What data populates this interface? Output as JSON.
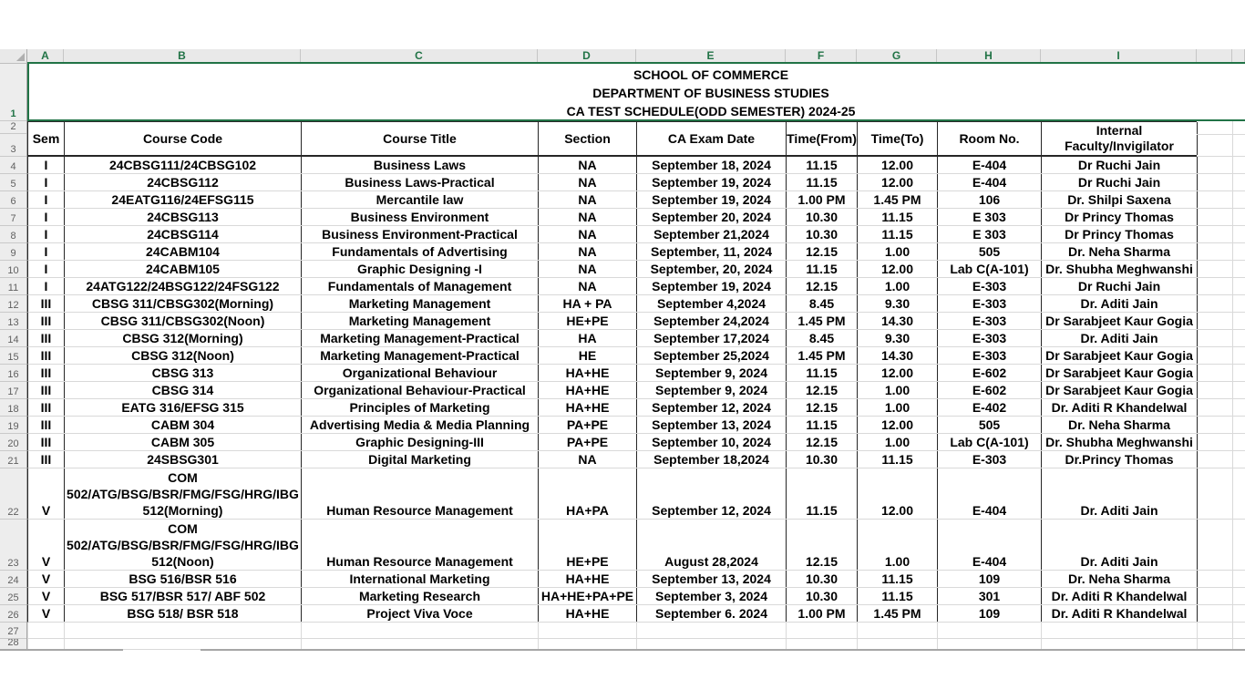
{
  "title": {
    "line1": "SCHOOL OF COMMERCE",
    "line2": "DEPARTMENT OF BUSINESS STUDIES",
    "line3": "CA TEST SCHEDULE(ODD SEMESTER) 2024-25"
  },
  "column_letters": [
    "A",
    "B",
    "C",
    "D",
    "E",
    "F",
    "G",
    "H",
    "I"
  ],
  "row_numbers": [
    "1",
    "2",
    "3",
    "4",
    "5",
    "6",
    "7",
    "8",
    "9",
    "10",
    "11",
    "12",
    "13",
    "14",
    "15",
    "16",
    "17",
    "18",
    "19",
    "20",
    "21",
    "22",
    "23",
    "24",
    "25",
    "26",
    "27",
    "28"
  ],
  "table": {
    "headers": [
      "Sem",
      "Course Code",
      "Course Title",
      "Section",
      "CA Exam Date",
      "Time(From)",
      "Time(To)",
      "Room No.",
      "Internal Faculty/Invigilator"
    ],
    "rows": [
      {
        "n": "4",
        "cells": [
          "I",
          "24CBSG111/24CBSG102",
          "Business Laws",
          "NA",
          "September 18, 2024",
          "11.15",
          "12.00",
          "E-404",
          "Dr Ruchi Jain"
        ]
      },
      {
        "n": "5",
        "cells": [
          "I",
          "24CBSG112",
          "Business Laws-Practical",
          "NA",
          "September 19, 2024",
          "11.15",
          "12.00",
          "E-404",
          "Dr Ruchi Jain"
        ]
      },
      {
        "n": "6",
        "cells": [
          "I",
          "24EATG116/24EFSG115",
          "Mercantile law",
          "NA",
          "September 19, 2024",
          "1.00 PM",
          "1.45 PM",
          "106",
          "Dr. Shilpi Saxena"
        ]
      },
      {
        "n": "7",
        "cells": [
          "I",
          "24CBSG113",
          "Business Environment",
          "NA",
          "September 20, 2024",
          "10.30",
          "11.15",
          "E 303",
          "Dr Princy Thomas"
        ]
      },
      {
        "n": "8",
        "cells": [
          "I",
          "24CBSG114",
          "Business Environment-Practical",
          "NA",
          "September 21,2024",
          "10.30",
          "11.15",
          "E 303",
          "Dr Princy Thomas"
        ]
      },
      {
        "n": "9",
        "cells": [
          "I",
          "24CABM104",
          "Fundamentals of Advertising",
          "NA",
          "September, 11, 2024",
          "12.15",
          "1.00",
          "505",
          "Dr. Neha Sharma"
        ]
      },
      {
        "n": "10",
        "cells": [
          "I",
          "24CABM105",
          "Graphic Designing -I",
          "NA",
          "September, 20, 2024",
          "11.15",
          "12.00",
          "Lab C(A-101)",
          "Dr. Shubha Meghwanshi"
        ]
      },
      {
        "n": "11",
        "cells": [
          "I",
          "24ATG122/24BSG122/24FSG122",
          "Fundamentals of Management",
          "NA",
          "September 19, 2024",
          "12.15",
          "1.00",
          "E-303",
          "Dr Ruchi Jain"
        ]
      },
      {
        "n": "12",
        "cells": [
          "III",
          "CBSG 311/CBSG302(Morning)",
          "Marketing Management",
          "HA + PA",
          "September 4,2024",
          "8.45",
          "9.30",
          "E-303",
          "Dr. Aditi Jain"
        ]
      },
      {
        "n": "13",
        "cells": [
          "III",
          "CBSG 311/CBSG302(Noon)",
          "Marketing Management",
          "HE+PE",
          "September 24,2024",
          "1.45 PM",
          "14.30",
          "E-303",
          "Dr Sarabjeet Kaur Gogia"
        ]
      },
      {
        "n": "14",
        "cells": [
          "III",
          "CBSG 312(Morning)",
          "Marketing Management-Practical",
          "HA",
          "September 17,2024",
          "8.45",
          "9.30",
          "E-303",
          "Dr. Aditi Jain"
        ]
      },
      {
        "n": "15",
        "cells": [
          "III",
          "CBSG 312(Noon)",
          "Marketing Management-Practical",
          "HE",
          "September 25,2024",
          "1.45 PM",
          "14.30",
          "E-303",
          "Dr Sarabjeet Kaur Gogia"
        ]
      },
      {
        "n": "16",
        "cells": [
          "III",
          "CBSG 313",
          "Organizational Behaviour",
          "HA+HE",
          "September 9, 2024",
          "11.15",
          "12.00",
          "E-602",
          "Dr Sarabjeet Kaur Gogia"
        ]
      },
      {
        "n": "17",
        "cells": [
          "III",
          "CBSG 314",
          "Organizational Behaviour-Practical",
          "HA+HE",
          "September 9, 2024",
          "12.15",
          "1.00",
          "E-602",
          "Dr Sarabjeet Kaur Gogia"
        ]
      },
      {
        "n": "18",
        "cells": [
          "III",
          "EATG 316/EFSG 315",
          "Principles of Marketing",
          "HA+HE",
          "September 12, 2024",
          "12.15",
          "1.00",
          "E-402",
          "Dr. Aditi R Khandelwal"
        ]
      },
      {
        "n": "19",
        "cells": [
          "III",
          "CABM 304",
          "Advertising Media & Media Planning",
          "PA+PE",
          "September 13, 2024",
          "11.15",
          "12.00",
          "505",
          "Dr. Neha Sharma"
        ]
      },
      {
        "n": "20",
        "cells": [
          "III",
          "CABM 305",
          "Graphic Designing-III",
          "PA+PE",
          "September 10, 2024",
          "12.15",
          "1.00",
          "Lab C(A-101)",
          "Dr. Shubha Meghwanshi"
        ]
      },
      {
        "n": "21",
        "cells": [
          "III",
          "24SBSG301",
          "Digital Marketing",
          "NA",
          "September 18,2024",
          "10.30",
          "11.15",
          "E-303",
          "Dr.Princy Thomas"
        ]
      },
      {
        "n": "22",
        "cells": [
          "V",
          "COM 502/ATG/BSG/BSR/FMG/FSG/HRG/IBG 512(Morning)",
          "Human Resource Management",
          "HA+PA",
          "September 12, 2024",
          "11.15",
          "12.00",
          "E-404",
          "Dr. Aditi Jain"
        ]
      },
      {
        "n": "23",
        "cells": [
          "V",
          "COM 502/ATG/BSG/BSR/FMG/FSG/HRG/IBG 512(Noon)",
          "Human Resource Management",
          "HE+PE",
          "August 28,2024",
          "12.15",
          "1.00",
          "E-404",
          "Dr. Aditi Jain"
        ]
      },
      {
        "n": "24",
        "cells": [
          "V",
          "BSG 516/BSR 516",
          "International Marketing",
          "HA+HE",
          "September 13, 2024",
          "10.30",
          "11.15",
          "109",
          "Dr. Neha Sharma"
        ]
      },
      {
        "n": "25",
        "cells": [
          "V",
          "BSG 517/BSR 517/ ABF 502",
          "Marketing Research",
          "HA+HE+PA+PE",
          "September 3, 2024",
          "10.30",
          "11.15",
          "301",
          "Dr. Aditi R Khandelwal"
        ]
      },
      {
        "n": "26",
        "cells": [
          "V",
          "BSG 518/ BSR 518",
          "Project Viva Voce",
          "HA+HE",
          "September 6. 2024",
          "1.00 PM",
          "1.45 PM",
          "109",
          "Dr. Aditi R Khandelwal"
        ]
      },
      {
        "n": "27",
        "cells": [
          "",
          "",
          "",
          "",
          "",
          "",
          "",
          "",
          ""
        ]
      },
      {
        "n": "28",
        "cells": [
          "",
          "",
          "",
          "",
          "",
          "",
          "",
          "",
          ""
        ]
      }
    ]
  },
  "colors": {
    "selection_green": "#217346",
    "table_border": "#262626",
    "grid_line": "#D9D9D9",
    "header_strip_bg": "#E9E9E9"
  }
}
